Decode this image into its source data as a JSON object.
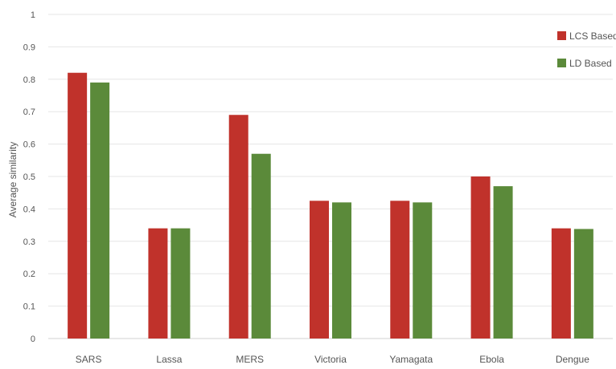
{
  "chart_data": {
    "type": "bar",
    "ylabel": "Average similarity",
    "xlabel": "",
    "ylim": [
      0,
      1
    ],
    "yticks": [
      "0",
      "0.1",
      "0.2",
      "0.3",
      "0.4",
      "0.5",
      "0.6",
      "0.7",
      "0.8",
      "0.9",
      "1"
    ],
    "grid": true,
    "legend_position": "top-right",
    "categories": [
      "SARS",
      "Lassa",
      "MERS",
      "Victoria",
      "Yamagata",
      "Ebola",
      "Dengue"
    ],
    "series": [
      {
        "name": "LCS Based",
        "color": "#c0322b",
        "values": [
          0.82,
          0.34,
          0.69,
          0.425,
          0.425,
          0.5,
          0.34
        ]
      },
      {
        "name": "LD Based",
        "color": "#5b8a3a",
        "values": [
          0.79,
          0.34,
          0.57,
          0.42,
          0.42,
          0.47,
          0.338
        ]
      }
    ]
  }
}
